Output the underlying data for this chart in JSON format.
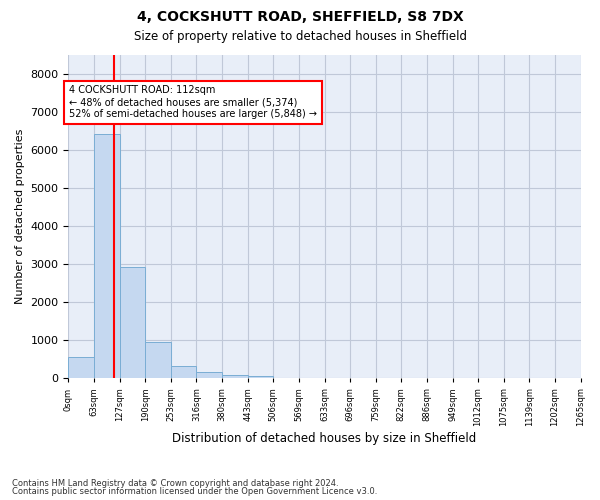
{
  "title": "4, COCKSHUTT ROAD, SHEFFIELD, S8 7DX",
  "subtitle": "Size of property relative to detached houses in Sheffield",
  "xlabel": "Distribution of detached houses by size in Sheffield",
  "ylabel": "Number of detached properties",
  "property_size": 112,
  "annotation_line1": "4 COCKSHUTT ROAD: 112sqm",
  "annotation_line2": "← 48% of detached houses are smaller (5,374)",
  "annotation_line3": "52% of semi-detached houses are larger (5,848) →",
  "footer_line1": "Contains HM Land Registry data © Crown copyright and database right 2024.",
  "footer_line2": "Contains public sector information licensed under the Open Government Licence v3.0.",
  "bin_edges": [
    0,
    63,
    127,
    190,
    253,
    316,
    380,
    443,
    506,
    569,
    633,
    696,
    759,
    822,
    886,
    949,
    1012,
    1075,
    1139,
    1202,
    1265
  ],
  "bar_heights": [
    550,
    6430,
    2930,
    960,
    330,
    160,
    100,
    60,
    0,
    0,
    0,
    0,
    0,
    0,
    0,
    0,
    0,
    0,
    0,
    0
  ],
  "bar_color": "#c5d8f0",
  "bar_edge_color": "#7aadd4",
  "vline_x": 112,
  "vline_color": "red",
  "annotation_box_color": "red",
  "ylim": [
    0,
    8500
  ],
  "yticks": [
    0,
    1000,
    2000,
    3000,
    4000,
    5000,
    6000,
    7000,
    8000
  ],
  "grid_color": "#c0c8d8",
  "bg_color": "#e8eef8",
  "tick_labels": [
    "0sqm",
    "63sqm",
    "127sqm",
    "190sqm",
    "253sqm",
    "316sqm",
    "380sqm",
    "443sqm",
    "506sqm",
    "569sqm",
    "633sqm",
    "696sqm",
    "759sqm",
    "822sqm",
    "886sqm",
    "949sqm",
    "1012sqm",
    "1075sqm",
    "1139sqm",
    "1202sqm",
    "1265sqm"
  ]
}
